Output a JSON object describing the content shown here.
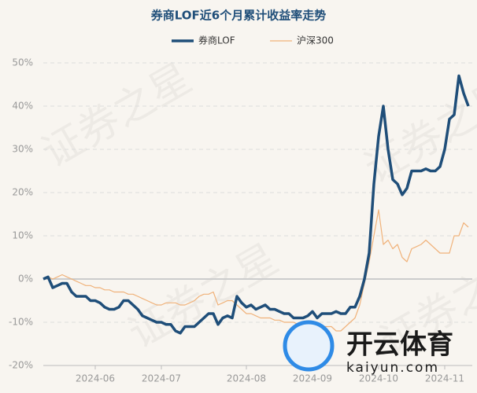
{
  "chart_data": {
    "type": "line",
    "title": "券商LOF近6个月累计收益率走势",
    "watermark": "证券之星",
    "logo_text": "开云体育",
    "logo_url": "kaiyun.com",
    "categories": [
      null,
      null,
      null,
      null,
      null,
      null,
      null,
      null,
      null,
      null,
      null,
      "2024-06",
      null,
      null,
      null,
      null,
      null,
      null,
      null,
      null,
      null,
      null,
      null,
      null,
      null,
      "2024-07",
      null,
      null,
      null,
      null,
      null,
      null,
      null,
      null,
      null,
      null,
      null,
      null,
      null,
      null,
      null,
      null,
      null,
      "2024-08",
      null,
      null,
      null,
      null,
      null,
      null,
      null,
      null,
      null,
      null,
      null,
      null,
      null,
      "2024-09",
      null,
      null,
      null,
      null,
      null,
      null,
      null,
      null,
      null,
      null,
      null,
      null,
      null,
      "2024-10",
      null,
      null,
      null,
      null,
      null,
      null,
      null,
      null,
      null,
      null,
      null,
      null,
      null,
      "2024-11",
      null,
      null,
      null,
      null,
      null
    ],
    "series": [
      {
        "name": "券商LOF",
        "color": "#1f4e79",
        "width": 3.5,
        "values": [
          0,
          0.5,
          -2,
          -1.5,
          -1,
          -1,
          -3,
          -4,
          -4,
          -4,
          -5,
          -5,
          -5.5,
          -6.5,
          -7,
          -7,
          -6.5,
          -5,
          -5,
          -6,
          -7,
          -8.5,
          -9,
          -9.5,
          -10,
          -10,
          -10.5,
          -10.5,
          -12,
          -12.5,
          -11,
          -11,
          -11,
          -10,
          -9,
          -8,
          -8,
          -10.5,
          -9,
          -8.5,
          -9,
          -4,
          -5.5,
          -6.5,
          -6,
          -7,
          -6.5,
          -6,
          -7,
          -7,
          -7.5,
          -8,
          -8,
          -9,
          -9,
          -9,
          -8.5,
          -7.5,
          -9,
          -8,
          -8,
          -8,
          -7.5,
          -8,
          -8,
          -6.5,
          -6.5,
          -4,
          0,
          6,
          22,
          33,
          40,
          30,
          23,
          22,
          19.5,
          21,
          25,
          25,
          25,
          25.5,
          25,
          25,
          26,
          30,
          37,
          38,
          47,
          43,
          40
        ]
      },
      {
        "name": "沪深300",
        "color": "#f0b27a",
        "width": 1.2,
        "values": [
          0,
          0.5,
          0,
          0.5,
          1,
          0.5,
          0,
          -0.5,
          -1,
          -1.5,
          -1.5,
          -2,
          -2,
          -2.5,
          -2.5,
          -3,
          -3,
          -3,
          -3.5,
          -3.5,
          -4,
          -4.5,
          -5,
          -5.5,
          -6,
          -6,
          -5.5,
          -5.5,
          -5.5,
          -6,
          -6,
          -5.5,
          -5,
          -4,
          -3.5,
          -3.5,
          -3,
          -6,
          -5.5,
          -5,
          -5,
          -6,
          -7,
          -8,
          -8,
          -8.5,
          -9,
          -9,
          -9,
          -9.5,
          -9.5,
          -10,
          -10,
          -10,
          -10.5,
          -10.5,
          -10.5,
          -10,
          -11,
          -11,
          -11,
          -11,
          -12,
          -12,
          -11,
          -10,
          -9,
          -6,
          -1,
          4,
          10,
          16,
          8,
          9,
          7,
          8,
          5,
          4,
          7,
          7.5,
          8,
          9,
          8,
          7,
          6,
          6,
          6,
          10,
          10,
          13,
          12
        ]
      }
    ],
    "ylim": [
      -20,
      50
    ],
    "yticks": [
      {
        "value": -20,
        "label": "-20%"
      },
      {
        "value": -10,
        "label": "-10%"
      },
      {
        "value": 0,
        "label": "0%"
      },
      {
        "value": 10,
        "label": "10%"
      },
      {
        "value": 20,
        "label": "20%"
      },
      {
        "value": 30,
        "label": "30%"
      },
      {
        "value": 40,
        "label": "40%"
      },
      {
        "value": 50,
        "label": "50%"
      }
    ],
    "grid": true
  }
}
